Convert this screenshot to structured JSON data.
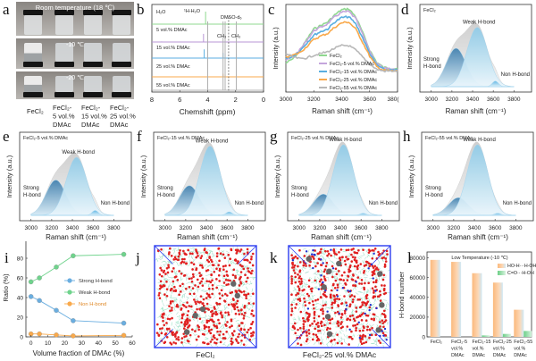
{
  "panel_labels": [
    "a",
    "b",
    "c",
    "d",
    "e",
    "f",
    "g",
    "h",
    "i",
    "j",
    "k",
    "l"
  ],
  "panel_a": {
    "row_titles": [
      "Room temperature (18 ℃)",
      "-10 ℃",
      "-20 ℃"
    ],
    "samples": [
      {
        "lines": [
          "FeCl₂"
        ]
      },
      {
        "lines": [
          "FeCl₂-",
          "5 vol.%",
          "DMAc"
        ]
      },
      {
        "lines": [
          "FeCl₂-",
          "15 vol.%",
          "DMAc"
        ]
      },
      {
        "lines": [
          "FeCl₂-",
          "25 vol.%",
          "DMAc"
        ]
      }
    ]
  },
  "chart_data": [
    {
      "id": "b",
      "type": "line",
      "xlabel": "Chemshift (ppm)",
      "xlim": [
        8,
        0
      ],
      "xticks": [
        "8",
        "6",
        "4",
        "2",
        "0"
      ],
      "annotations": {
        "h2o_peak": "¹H-H₂O",
        "dmso": "DMSO-d₆",
        "ch3": "CH₃",
        "ch3b": "CH₃"
      },
      "reference_line_ppm": 2.5,
      "series": [
        {
          "name": "H₂O",
          "color": "#8fd88f",
          "peaks": [
            [
              4.15,
              1.0
            ]
          ]
        },
        {
          "name": "5 vol.% DMAc",
          "color": "#b896d6",
          "peaks": [
            [
              4.3,
              0.7
            ],
            [
              7.3,
              0.05
            ]
          ]
        },
        {
          "name": "15 vol.% DMAc",
          "color": "#5aaee0",
          "peaks": [
            [
              4.25,
              0.75
            ],
            [
              2.9,
              0.45
            ],
            [
              2.75,
              0.4
            ],
            [
              1.95,
              0.4
            ]
          ]
        },
        {
          "name": "25 vol.% DMAc",
          "color": "#f9a94b",
          "peaks": [
            [
              4.0,
              0.9
            ],
            [
              2.9,
              0.25
            ],
            [
              2.75,
              0.2
            ],
            [
              1.95,
              0.2
            ]
          ]
        },
        {
          "name": "55 vol.% DMAc",
          "color": "#b0b0b0",
          "peaks": [
            [
              4.0,
              1.0
            ],
            [
              2.9,
              1.0
            ],
            [
              2.75,
              1.0
            ],
            [
              1.95,
              1.0
            ]
          ]
        }
      ]
    },
    {
      "id": "c",
      "type": "line",
      "xlabel": "Raman shift (cm⁻¹)",
      "ylabel": "Intensity (a.u.)",
      "xlim": [
        3000,
        3800
      ],
      "xticks": [
        "3000",
        "3200",
        "3400",
        "3600",
        "380("
      ],
      "x": [
        3000,
        3050,
        3100,
        3150,
        3200,
        3250,
        3300,
        3350,
        3400,
        3450,
        3500,
        3550,
        3600,
        3650,
        3700,
        3750,
        3800
      ],
      "legend": "bottom-center",
      "series": [
        {
          "name": "FeCl₂",
          "color": "#8fd88f",
          "values": [
            0.33,
            0.38,
            0.47,
            0.6,
            0.72,
            0.76,
            0.8,
            0.88,
            0.94,
            0.95,
            0.86,
            0.68,
            0.48,
            0.34,
            0.28,
            0.27,
            0.27
          ]
        },
        {
          "name": "FeCl₂-5 vol.% DMAc",
          "color": "#c4a6dc",
          "values": [
            0.36,
            0.4,
            0.48,
            0.59,
            0.7,
            0.74,
            0.78,
            0.86,
            0.91,
            0.92,
            0.84,
            0.66,
            0.47,
            0.33,
            0.27,
            0.26,
            0.26
          ]
        },
        {
          "name": "FeCl₂-15 vol.% DMAc",
          "color": "#5aaee0",
          "values": [
            0.38,
            0.41,
            0.47,
            0.56,
            0.65,
            0.69,
            0.72,
            0.8,
            0.85,
            0.86,
            0.78,
            0.62,
            0.44,
            0.31,
            0.26,
            0.25,
            0.25
          ]
        },
        {
          "name": "FeCl₂-25 vol.% DMAc",
          "color": "#f9a94b",
          "values": [
            0.4,
            0.42,
            0.45,
            0.52,
            0.6,
            0.64,
            0.67,
            0.74,
            0.79,
            0.8,
            0.72,
            0.57,
            0.41,
            0.29,
            0.25,
            0.24,
            0.24
          ]
        },
        {
          "name": "FeCl₂-55 vol.% DMAc",
          "color": "#b8b8b8",
          "values": [
            0.44,
            0.4,
            0.38,
            0.39,
            0.42,
            0.44,
            0.46,
            0.5,
            0.53,
            0.53,
            0.48,
            0.4,
            0.32,
            0.26,
            0.24,
            0.24,
            0.24
          ]
        }
      ]
    },
    {
      "id": "d",
      "type": "area",
      "title": "FeCl₂",
      "xlabel": "Raman shift (cm⁻¹)",
      "ylabel": "Intensity (a.u.)",
      "xticks": [
        "3000",
        "3200",
        "3400",
        "3600",
        "3800"
      ],
      "components": [
        {
          "name": "Strong H-bond",
          "center": 3240,
          "amp": 0.55
        },
        {
          "name": "Weak H-bond",
          "center": 3445,
          "amp": 0.85
        },
        {
          "name": "Non H-bond",
          "center": 3620,
          "amp": 0.08
        }
      ]
    },
    {
      "id": "e",
      "type": "area",
      "title": "FeCl₂-5 vol.% DMAc",
      "xlabel": "Raman shift (cm⁻¹)",
      "ylabel": "Intensity (a.u.)",
      "xticks": [
        "3000",
        "3200",
        "3400",
        "3600",
        "3800"
      ],
      "components": [
        {
          "name": "Strong H-bond",
          "center": 3240,
          "amp": 0.5
        },
        {
          "name": "Weak H-bond",
          "center": 3440,
          "amp": 0.82
        },
        {
          "name": "Non H-bond",
          "center": 3620,
          "amp": 0.07
        }
      ]
    },
    {
      "id": "f",
      "type": "area",
      "title": "FeCl₂-15 vol.% DMAc",
      "xlabel": "Raman shift (cm⁻¹)",
      "ylabel": "Intensity (a.u.)",
      "xticks": [
        "3000",
        "3200",
        "3400",
        "3600",
        "3800"
      ],
      "components": [
        {
          "name": "Strong H-bond",
          "center": 3235,
          "amp": 0.42
        },
        {
          "name": "Weak H-bond",
          "center": 3435,
          "amp": 0.98
        },
        {
          "name": "Non H-bond",
          "center": 3620,
          "amp": 0.05
        }
      ]
    },
    {
      "id": "g",
      "type": "area",
      "title": "FeCl₂-25 vol.% DMAc",
      "xlabel": "Raman shift (cm⁻¹)",
      "ylabel": "Intensity (a.u.)",
      "xticks": [
        "3000",
        "3200",
        "3400",
        "3600",
        "3800"
      ],
      "components": [
        {
          "name": "Strong H-bond",
          "center": 3235,
          "amp": 0.3
        },
        {
          "name": "Weak H-bond",
          "center": 3430,
          "amp": 1.0
        },
        {
          "name": "Non H-bond",
          "center": 3620,
          "amp": 0.03
        }
      ]
    },
    {
      "id": "h",
      "type": "area",
      "title": "FeCl₂-55 vol.% DMAc",
      "xlabel": "Raman shift (cm⁻¹)",
      "ylabel": "Intensity (a.u.)",
      "xticks": [
        "3000",
        "3200",
        "3400",
        "3600",
        "3800"
      ],
      "components": [
        {
          "name": "Strong H-bond",
          "center": 3245,
          "amp": 0.25
        },
        {
          "name": "Weak H-bond",
          "center": 3430,
          "amp": 1.0
        },
        {
          "name": "Non H-bond",
          "center": 3625,
          "amp": 0.03
        }
      ]
    },
    {
      "id": "i",
      "type": "line",
      "xlabel": "Volume fraction of DMAc  (%)",
      "ylabel": "Ratio (%)",
      "xlim": [
        -3,
        60
      ],
      "ylim": [
        0,
        90
      ],
      "xticks": [
        0,
        10,
        20,
        30,
        40,
        50,
        60
      ],
      "yticks": [
        0,
        20,
        40,
        60,
        80
      ],
      "x": [
        0,
        5,
        15,
        25,
        55
      ],
      "legend": "center-right",
      "series": [
        {
          "name": "Strong H-bond",
          "color": "#6aaee0",
          "values": [
            41,
            37,
            27,
            16.5,
            14
          ]
        },
        {
          "name": "Weak H-bond",
          "color": "#6fd38c",
          "values": [
            56,
            60,
            71,
            82.5,
            84
          ]
        },
        {
          "name": "Non H-bond",
          "color": "#f9a94b",
          "values": [
            3,
            3,
            2,
            1,
            1.5
          ]
        }
      ]
    },
    {
      "id": "l",
      "type": "bar",
      "title": "Low Temperature (-10 ℃)",
      "ylabel": "H-bond number",
      "ylim": [
        0,
        86000
      ],
      "yticks": [
        "0",
        "20000",
        "40000",
        "60000",
        "80000"
      ],
      "categories": [
        [
          "FeCl₂"
        ],
        [
          "FeCl₂-5",
          "vol.%",
          "DMAc"
        ],
        [
          "FeCl₂-15",
          "vol.%",
          "DMAc"
        ],
        [
          "FeCl₂-25",
          "vol.%",
          "DMAc"
        ],
        [
          "FeCl₂-55",
          "vol.%",
          "DMAc"
        ]
      ],
      "legend": "top-right",
      "series": [
        {
          "name": "HO-H···H-OH",
          "color": "#fbbf86",
          "values": [
            78000,
            76000,
            64500,
            55000,
            27500
          ]
        },
        {
          "name": "C=O···H-OH",
          "color": "#7fd394",
          "values": [
            0,
            0,
            1500,
            3000,
            6000
          ]
        }
      ]
    }
  ],
  "panel_j": {
    "caption": "FeCl₂",
    "top_label": "Raman shift (cm⁻¹)"
  },
  "panel_k": {
    "caption": "FeCl₂-25 vol.% DMAc",
    "top_label": "Raman shift (cm⁻¹)"
  },
  "panel_i_top_label": "Raman shift (cm⁻¹)",
  "panel_l_top_label": "Raman shift (cm⁻¹)"
}
